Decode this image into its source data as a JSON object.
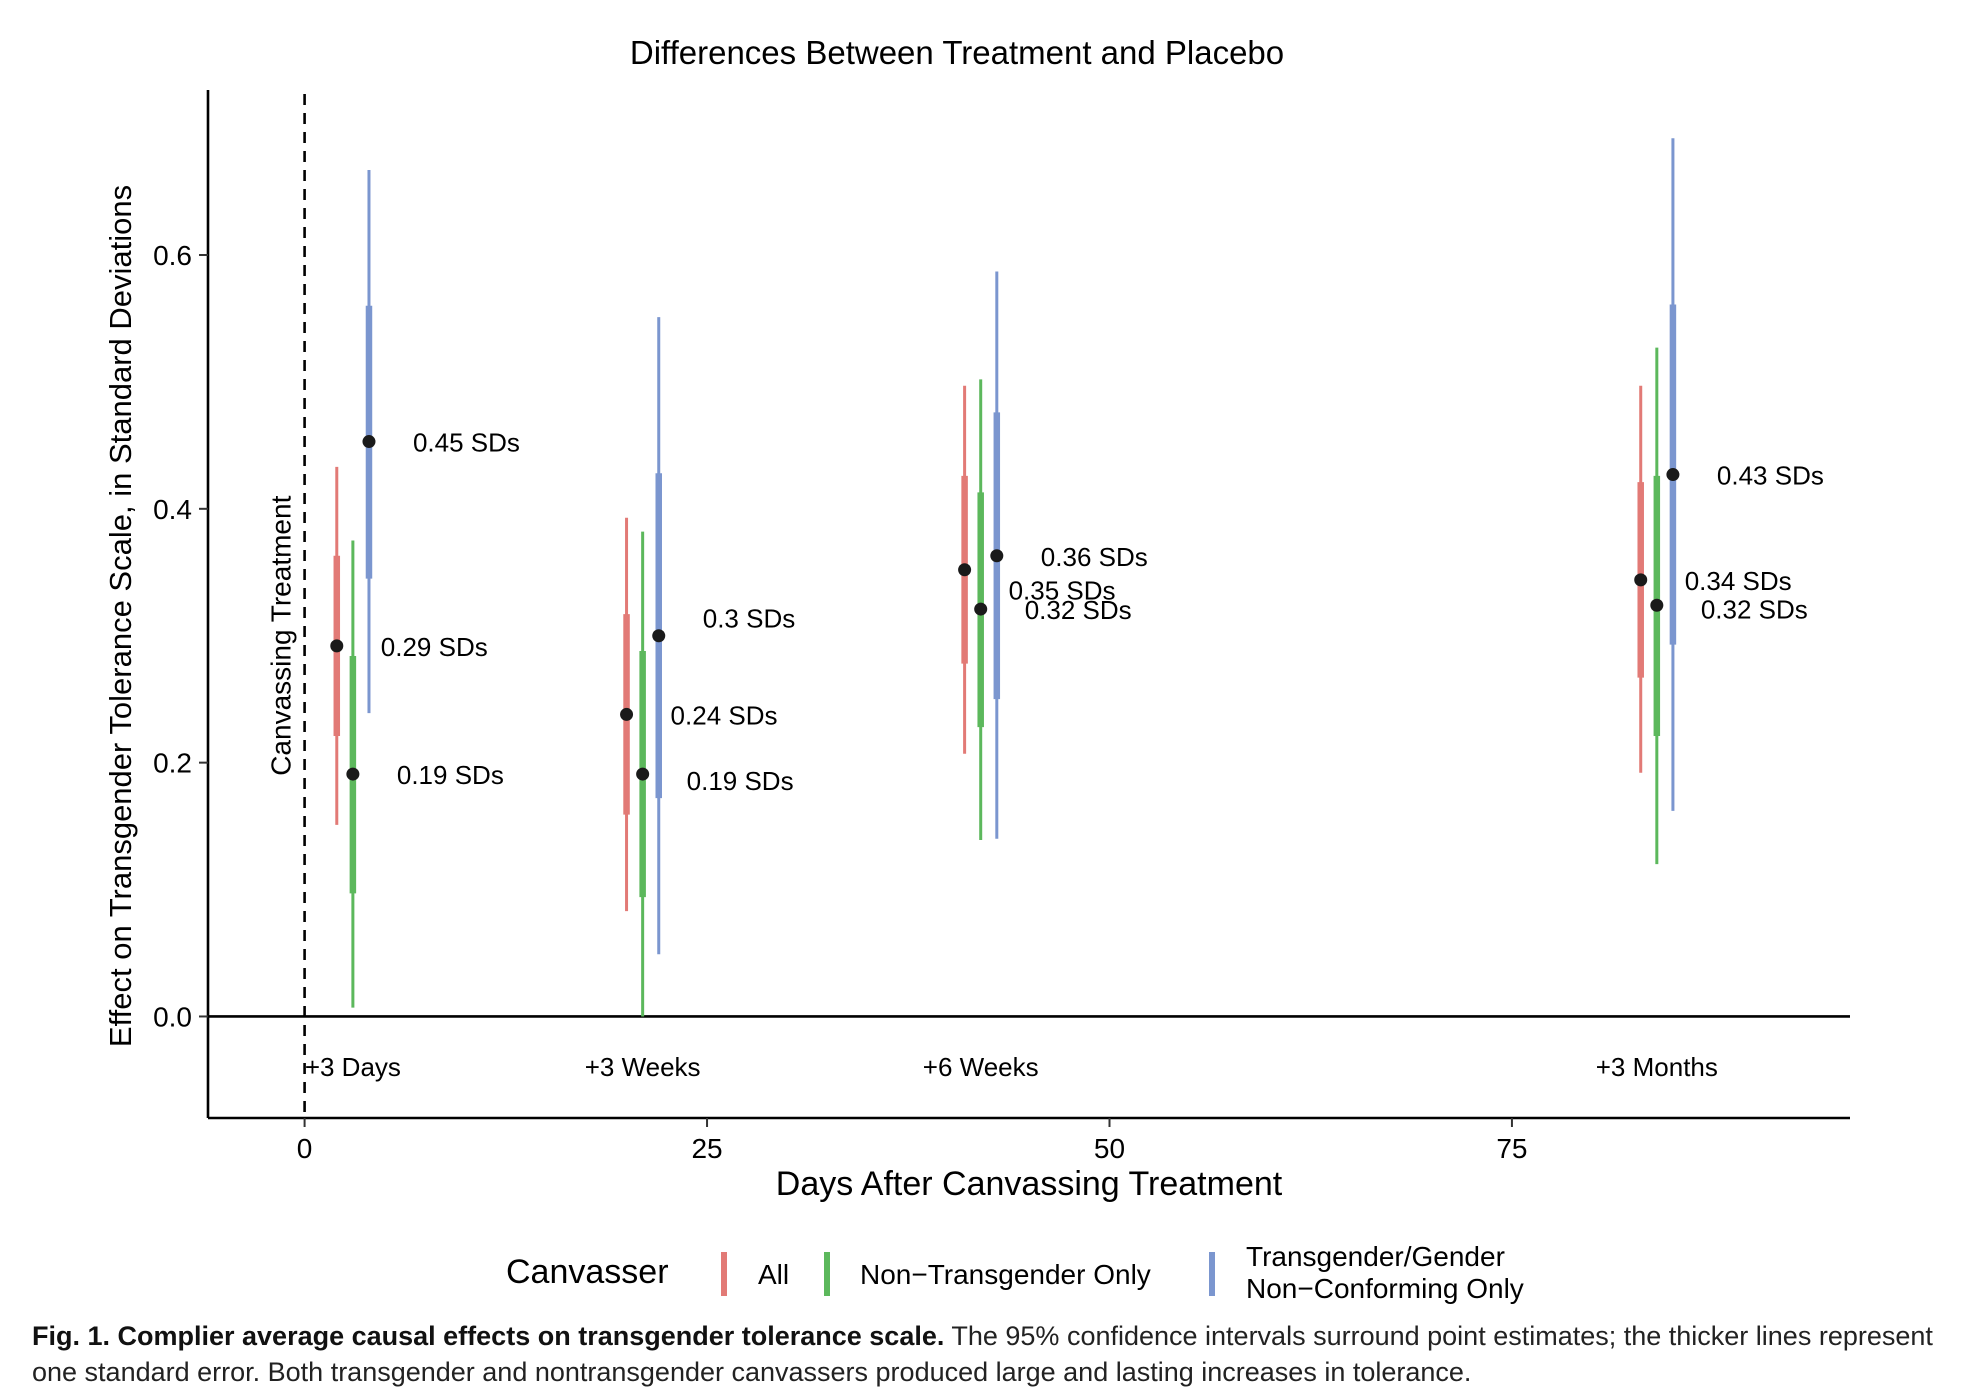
{
  "chart_data": {
    "type": "scatter",
    "title": "Differences Between Treatment and Placebo",
    "xlabel": "Days After Canvassing Treatment",
    "ylabel": "Effect on Transgender Tolerance Scale, in Standard Deviations",
    "xlim": [
      -6,
      96
    ],
    "ylim": [
      -0.08,
      0.73
    ],
    "xticks": [
      0,
      25,
      50,
      75
    ],
    "yticks": [
      0.0,
      0.2,
      0.4,
      0.6
    ],
    "ytick_labels": [
      "0.0",
      "0.2",
      "0.4",
      "0.6"
    ],
    "grid": false,
    "legend_position": "bottom",
    "reference_line": {
      "x": 0,
      "label": "Canvassing Treatment",
      "style": "dashed"
    },
    "time_labels": [
      {
        "x": 3,
        "label": "+3 Days"
      },
      {
        "x": 21,
        "label": "+3 Weeks"
      },
      {
        "x": 42,
        "label": "+6 Weeks"
      },
      {
        "x": 84,
        "label": "+3 Months"
      }
    ],
    "legend_title": "Canvasser",
    "series": [
      {
        "name": "All",
        "color": "#e27a76",
        "points": [
          {
            "x": 2,
            "y": 0.292,
            "se": [
              0.221,
              0.363
            ],
            "ci": [
              0.151,
              0.433
            ],
            "label": "0.29 SDs"
          },
          {
            "x": 20,
            "y": 0.238,
            "se": [
              0.159,
              0.317
            ],
            "ci": [
              0.083,
              0.393
            ],
            "label": "0.24 SDs"
          },
          {
            "x": 41,
            "y": 0.352,
            "se": [
              0.278,
              0.426
            ],
            "ci": [
              0.207,
              0.497
            ],
            "label": "0.35 SDs"
          },
          {
            "x": 83,
            "y": 0.344,
            "se": [
              0.267,
              0.421
            ],
            "ci": [
              0.192,
              0.497
            ],
            "label": "0.34 SDs"
          }
        ]
      },
      {
        "name": "Non−Transgender Only",
        "color": "#5cb85c",
        "points": [
          {
            "x": 3,
            "y": 0.191,
            "se": [
              0.097,
              0.284
            ],
            "ci": [
              0.007,
              0.375
            ],
            "label": "0.19 SDs"
          },
          {
            "x": 21,
            "y": 0.191,
            "se": [
              0.094,
              0.288
            ],
            "ci": [
              0.0,
              0.382
            ],
            "label": "0.19 SDs"
          },
          {
            "x": 42,
            "y": 0.321,
            "se": [
              0.228,
              0.413
            ],
            "ci": [
              0.139,
              0.502
            ],
            "label": "0.32 SDs"
          },
          {
            "x": 84,
            "y": 0.324,
            "se": [
              0.221,
              0.426
            ],
            "ci": [
              0.12,
              0.527
            ],
            "label": "0.32 SDs"
          }
        ]
      },
      {
        "name": "Transgender/Gender Non−Conforming Only",
        "name_lines": [
          "Transgender/Gender",
          "Non−Conforming Only"
        ],
        "color": "#7b96cf",
        "points": [
          {
            "x": 4,
            "y": 0.453,
            "se": [
              0.345,
              0.56
            ],
            "ci": [
              0.239,
              0.667
            ],
            "label": "0.45 SDs"
          },
          {
            "x": 22,
            "y": 0.3,
            "se": [
              0.172,
              0.428
            ],
            "ci": [
              0.049,
              0.551
            ],
            "label": "0.3 SDs"
          },
          {
            "x": 43,
            "y": 0.363,
            "se": [
              0.25,
              0.476
            ],
            "ci": [
              0.14,
              0.587
            ],
            "label": "0.36 SDs"
          },
          {
            "x": 85,
            "y": 0.427,
            "se": [
              0.293,
              0.561
            ],
            "ci": [
              0.162,
              0.692
            ],
            "label": "0.43 SDs"
          }
        ]
      }
    ]
  },
  "caption": {
    "lead": "Fig. 1. Complier average causal effects on transgender tolerance scale.",
    "text": " The 95% confidence intervals surround point estimates; the thicker lines represent one standard error. Both transgender and nontransgender canvassers produced large and lasting increases in tolerance."
  }
}
